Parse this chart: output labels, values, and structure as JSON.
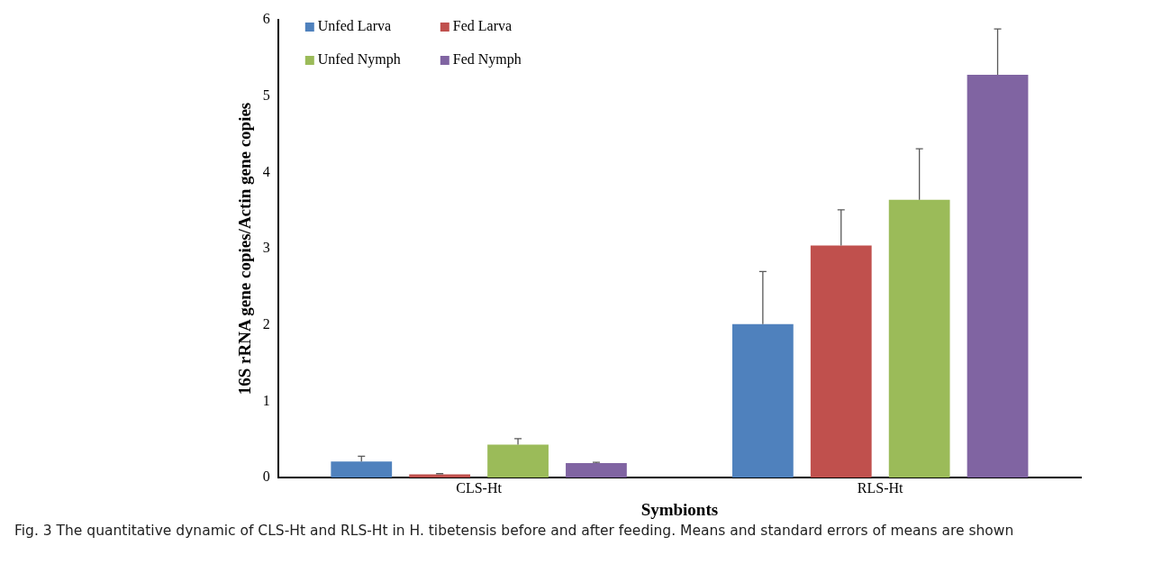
{
  "chart_data": {
    "type": "bar",
    "xlabel": "Symbionts",
    "ylabel": "16S rRNA gene copies/Actin gene copies",
    "categories": [
      "CLS-Ht",
      "RLS-Ht"
    ],
    "series": [
      {
        "name": "Unfed Larva",
        "color": "#4f81bd",
        "values": [
          0.21,
          2.01
        ],
        "errors": [
          [
            0.21,
            0.28
          ],
          [
            2.01,
            2.7
          ]
        ]
      },
      {
        "name": "Fed Larva",
        "color": "#c0504d",
        "values": [
          0.04,
          3.04
        ],
        "errors": [
          [
            0.04,
            0.05
          ],
          [
            3.04,
            3.51
          ]
        ]
      },
      {
        "name": "Unfed Nymph",
        "color": "#9bbb59",
        "values": [
          0.43,
          3.64
        ],
        "errors": [
          [
            0.43,
            0.51
          ],
          [
            3.64,
            4.31
          ]
        ]
      },
      {
        "name": "Fed Nymph",
        "color": "#8064a2",
        "values": [
          0.19,
          5.28
        ],
        "errors": [
          [
            0.19,
            0.2
          ],
          [
            5.28,
            5.88
          ]
        ]
      }
    ],
    "ylim": [
      0,
      6
    ],
    "yticks": [
      0,
      1,
      2,
      3,
      4,
      5,
      6
    ],
    "grid": false,
    "legend": "top left",
    "annotations": [
      "Fig. 3 The quantitative dynamic of CLS-Ht and RLS-Ht in H. tibetensis before and after feeding. Means and standard errors of means are shown"
    ]
  }
}
